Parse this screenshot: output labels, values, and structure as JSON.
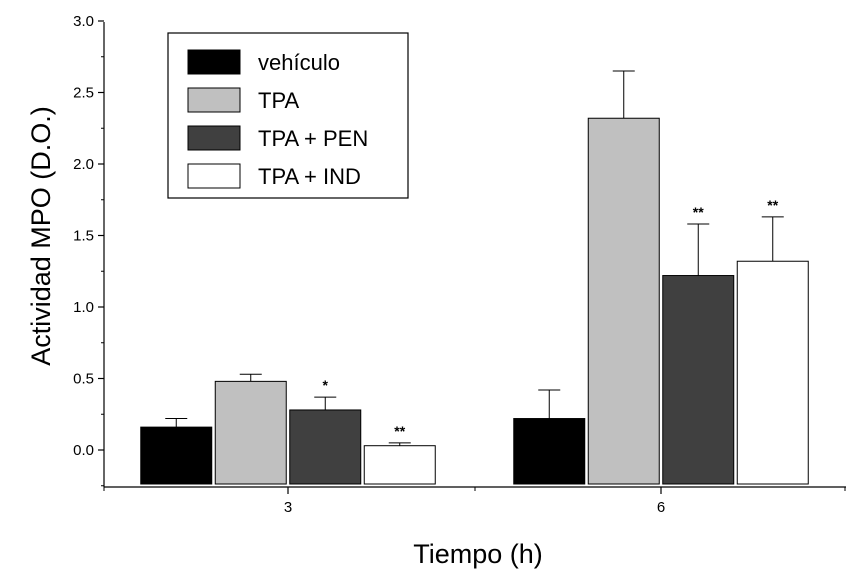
{
  "chart_data": {
    "type": "bar",
    "xlabel": "Tiempo (h)",
    "ylabel": "Actividad MPO (D.O.)",
    "categories": [
      "3",
      "6"
    ],
    "ylim": [
      -0.25,
      3.0
    ],
    "yticks": [
      "0.0",
      "0.5",
      "1.0",
      "1.5",
      "2.0",
      "2.5",
      "3.0"
    ],
    "legend_position": "top-left",
    "series": [
      {
        "name": "vehículo",
        "color": "#000000",
        "values": [
          0.16,
          0.22
        ],
        "errors": [
          0.06,
          0.2
        ],
        "significance": [
          "",
          ""
        ]
      },
      {
        "name": "TPA",
        "color": "#c0c0c0",
        "values": [
          0.48,
          2.32
        ],
        "errors": [
          0.05,
          0.33
        ],
        "significance": [
          "",
          ""
        ]
      },
      {
        "name": "TPA + PEN",
        "color": "#404040",
        "values": [
          0.28,
          1.22
        ],
        "errors": [
          0.09,
          0.36
        ],
        "significance": [
          "*",
          "**"
        ]
      },
      {
        "name": "TPA + IND",
        "color": "#ffffff",
        "values": [
          0.03,
          1.32
        ],
        "errors": [
          0.02,
          0.31
        ],
        "significance": [
          "**",
          "**"
        ]
      }
    ]
  }
}
